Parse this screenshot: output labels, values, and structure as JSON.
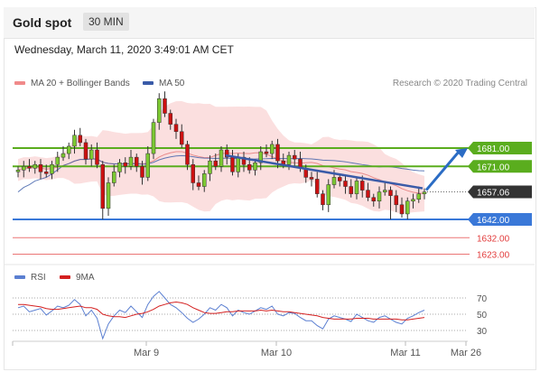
{
  "header": {
    "title": "Gold spot",
    "interval": "30 MIN"
  },
  "timestamp": "Wednesday, March 11, 2020 3:49:01 AM CET",
  "legend": {
    "bollinger_label": "MA 20 + Bollinger Bands",
    "ma50_label": "MA 50",
    "credit": "Research © 2020 Trading Central"
  },
  "rsi_legend": {
    "rsi_label": "RSI",
    "ma_label": "9MA"
  },
  "colors": {
    "resistance": "#5aad1e",
    "support": "#3a78d8",
    "minor": "#e23b3b",
    "bollinger": "#f7b8b8",
    "ma50": "#3a5ba8",
    "trendline": "#3a5ba8",
    "arrow": "#2b6cc4",
    "candle_up": "#7cc832",
    "candle_down": "#cc1111",
    "rsi": "#5b7fd1",
    "rsi_ma": "#d42020",
    "current_price": "#333333"
  },
  "chart_data": {
    "type": "candlestick",
    "x_axis_labels": [
      "Mar 9",
      "Mar 10",
      "Mar 11",
      "Mar 26"
    ],
    "current_price": 1657.06,
    "levels": [
      {
        "price": 1681.0,
        "label": "1681.00",
        "kind": "resistance"
      },
      {
        "price": 1671.0,
        "label": "1671.00",
        "kind": "resistance"
      },
      {
        "price": 1642.0,
        "label": "1642.00",
        "kind": "support"
      },
      {
        "price": 1632.0,
        "label": "1632.00",
        "kind": "minor"
      },
      {
        "price": 1623.0,
        "label": "1623.00",
        "kind": "minor"
      }
    ],
    "closes": [
      1669,
      1671,
      1670,
      1672,
      1668,
      1667,
      1672,
      1676,
      1678,
      1682,
      1688,
      1684,
      1675,
      1680,
      1672,
      1648,
      1662,
      1668,
      1673,
      1671,
      1676,
      1671,
      1665,
      1678,
      1695,
      1708,
      1700,
      1694,
      1690,
      1683,
      1672,
      1662,
      1660,
      1667,
      1674,
      1671,
      1680,
      1676,
      1668,
      1676,
      1672,
      1669,
      1673,
      1679,
      1678,
      1683,
      1674,
      1672,
      1677,
      1675,
      1670,
      1665,
      1664,
      1656,
      1650,
      1661,
      1665,
      1663,
      1660,
      1656,
      1663,
      1658,
      1654,
      1652,
      1657,
      1658,
      1655,
      1650,
      1645,
      1652,
      1653,
      1656,
      1657
    ],
    "rsi": {
      "levels": [
        70,
        50,
        30
      ],
      "rsi_values": [
        58,
        60,
        53,
        55,
        57,
        49,
        54,
        60,
        58,
        61,
        68,
        62,
        48,
        55,
        45,
        20,
        38,
        48,
        55,
        52,
        60,
        53,
        46,
        62,
        72,
        78,
        70,
        62,
        58,
        52,
        45,
        40,
        44,
        50,
        58,
        55,
        62,
        58,
        48,
        55,
        52,
        50,
        54,
        58,
        56,
        60,
        50,
        48,
        52,
        51,
        46,
        42,
        42,
        36,
        32,
        44,
        48,
        46,
        44,
        41,
        50,
        46,
        42,
        40,
        46,
        48,
        44,
        40,
        38,
        45,
        48,
        52,
        55
      ],
      "ma_values": [
        62,
        62,
        61,
        60,
        59,
        57,
        56,
        56,
        57,
        58,
        59,
        60,
        58,
        58,
        56,
        50,
        48,
        47,
        47,
        46,
        48,
        50,
        51,
        53,
        56,
        60,
        62,
        64,
        65,
        64,
        62,
        58,
        55,
        52,
        51,
        51,
        52,
        53,
        53,
        54,
        54,
        54,
        54,
        55,
        54,
        55,
        54,
        53,
        53,
        52,
        51,
        50,
        49,
        48,
        46,
        45,
        44,
        44,
        44,
        44,
        45,
        45,
        45,
        44,
        44,
        44,
        44,
        44,
        43,
        43,
        44,
        45,
        46
      ]
    }
  }
}
